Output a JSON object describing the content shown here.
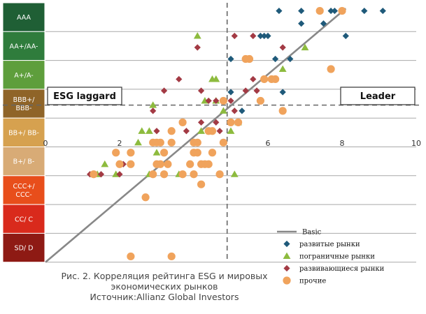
{
  "chart_data": {
    "type": "scatter",
    "xlim": [
      0,
      10
    ],
    "x_ticks": [
      "0",
      "2",
      "4",
      "6",
      "8",
      "10"
    ],
    "ratings": [
      {
        "label": "AAA",
        "color": "#1f5f35"
      },
      {
        "label": "AA+/AA-",
        "color": "#2f7c3c"
      },
      {
        "label": "A+/A-",
        "color": "#5e9e3c"
      },
      {
        "label": "BBB+/\nBBB-",
        "color": "#8f6428"
      },
      {
        "label": "BB+/ BB-",
        "color": "#d6a14f"
      },
      {
        "label": "B+/ B-",
        "color": "#d8ab76"
      },
      {
        "label": "CCC+/\nCCC-",
        "color": "#e84e1b"
      },
      {
        "label": "CC/ C",
        "color": "#d92a1c"
      },
      {
        "label": "SD/ D",
        "color": "#8e1a14"
      }
    ],
    "divider": {
      "x": 4.9,
      "y": 3.55
    },
    "boxes": {
      "left": "ESG laggard",
      "right": "Leader"
    },
    "trend": {
      "x": [
        0,
        8.1
      ],
      "y": [
        9,
        0.2
      ]
    },
    "series": [
      {
        "name": "развитые рынки",
        "marker": "diamond",
        "color": "#1f5a7a",
        "points": [
          [
            6.3,
            0.28
          ],
          [
            6.9,
            0.28
          ],
          [
            7.7,
            0.28
          ],
          [
            7.8,
            0.28
          ],
          [
            8.6,
            0.28
          ],
          [
            9.1,
            0.28
          ],
          [
            6.9,
            0.72
          ],
          [
            7.5,
            0.72
          ],
          [
            5.8,
            1.15
          ],
          [
            5.9,
            1.15
          ],
          [
            6.0,
            1.15
          ],
          [
            8.1,
            1.15
          ],
          [
            5.0,
            1.95
          ],
          [
            6.2,
            1.95
          ],
          [
            6.6,
            1.95
          ],
          [
            5.0,
            3.1
          ],
          [
            6.4,
            3.1
          ],
          [
            5.3,
            3.75
          ]
        ]
      },
      {
        "name": "пограничные рынки",
        "marker": "triangle",
        "color": "#8dbb3e",
        "points": [
          [
            4.1,
            1.15
          ],
          [
            7.0,
            1.55
          ],
          [
            6.4,
            2.3
          ],
          [
            4.5,
            2.65
          ],
          [
            4.6,
            2.65
          ],
          [
            4.3,
            3.4
          ],
          [
            4.6,
            3.4
          ],
          [
            2.9,
            3.55
          ],
          [
            4.8,
            3.75
          ],
          [
            5.2,
            4.15
          ],
          [
            2.6,
            4.45
          ],
          [
            2.8,
            4.45
          ],
          [
            4.2,
            4.45
          ],
          [
            5.0,
            4.45
          ],
          [
            2.5,
            4.85
          ],
          [
            3.0,
            5.2
          ],
          [
            1.6,
            5.6
          ],
          [
            1.4,
            5.95
          ],
          [
            1.9,
            5.95
          ],
          [
            2.8,
            5.95
          ],
          [
            3.6,
            5.95
          ],
          [
            5.1,
            5.95
          ]
        ]
      },
      {
        "name": "развивающиеся рынки",
        "marker": "diamond",
        "color": "#a33a44",
        "points": [
          [
            4.1,
            1.55
          ],
          [
            5.1,
            1.15
          ],
          [
            5.6,
            1.15
          ],
          [
            6.4,
            1.55
          ],
          [
            3.6,
            2.65
          ],
          [
            5.6,
            2.65
          ],
          [
            3.2,
            3.05
          ],
          [
            4.2,
            3.05
          ],
          [
            5.4,
            3.05
          ],
          [
            5.7,
            3.05
          ],
          [
            4.4,
            3.4
          ],
          [
            4.6,
            3.4
          ],
          [
            5.0,
            3.4
          ],
          [
            2.9,
            3.75
          ],
          [
            5.1,
            3.75
          ],
          [
            4.2,
            4.15
          ],
          [
            4.6,
            4.15
          ],
          [
            3.0,
            4.45
          ],
          [
            3.8,
            4.45
          ],
          [
            4.7,
            4.45
          ],
          [
            2.1,
            5.6
          ],
          [
            1.2,
            5.95
          ],
          [
            1.5,
            5.95
          ],
          [
            2.0,
            5.95
          ]
        ]
      },
      {
        "name": "прочие",
        "marker": "circle",
        "color": "#f0a35c",
        "points": [
          [
            7.4,
            0.28
          ],
          [
            8.0,
            0.28
          ],
          [
            5.4,
            1.95
          ],
          [
            5.5,
            1.95
          ],
          [
            7.7,
            2.3
          ],
          [
            5.9,
            2.65
          ],
          [
            6.1,
            2.65
          ],
          [
            6.2,
            2.65
          ],
          [
            4.8,
            3.4
          ],
          [
            5.8,
            3.4
          ],
          [
            6.4,
            3.75
          ],
          [
            3.7,
            4.15
          ],
          [
            5.0,
            4.15
          ],
          [
            5.2,
            4.15
          ],
          [
            3.4,
            4.45
          ],
          [
            4.4,
            4.45
          ],
          [
            4.5,
            4.45
          ],
          [
            2.9,
            4.85
          ],
          [
            3.0,
            4.85
          ],
          [
            3.1,
            4.85
          ],
          [
            3.4,
            4.85
          ],
          [
            4.0,
            4.85
          ],
          [
            4.1,
            4.85
          ],
          [
            4.8,
            4.85
          ],
          [
            1.9,
            5.2
          ],
          [
            2.3,
            5.2
          ],
          [
            3.2,
            5.2
          ],
          [
            4.0,
            5.2
          ],
          [
            4.1,
            5.2
          ],
          [
            4.5,
            5.2
          ],
          [
            2.0,
            5.6
          ],
          [
            2.3,
            5.6
          ],
          [
            3.0,
            5.6
          ],
          [
            3.1,
            5.6
          ],
          [
            3.3,
            5.6
          ],
          [
            3.9,
            5.6
          ],
          [
            4.2,
            5.6
          ],
          [
            4.3,
            5.6
          ],
          [
            4.4,
            5.6
          ],
          [
            1.3,
            5.95
          ],
          [
            2.9,
            5.95
          ],
          [
            3.2,
            5.95
          ],
          [
            3.7,
            5.95
          ],
          [
            4.0,
            5.95
          ],
          [
            4.7,
            5.95
          ],
          [
            4.2,
            6.3
          ],
          [
            2.7,
            6.75
          ],
          [
            2.3,
            8.8
          ],
          [
            3.4,
            8.8
          ]
        ]
      }
    ],
    "legend": {
      "trend_label": "Basic",
      "placement": "bottom-right"
    }
  },
  "caption": {
    "line1": "Рис. 2. Корреляция рейтинга ESG и мировых",
    "line2": "экономических рынков",
    "line3": "Источник:Allianz Global Investors"
  }
}
